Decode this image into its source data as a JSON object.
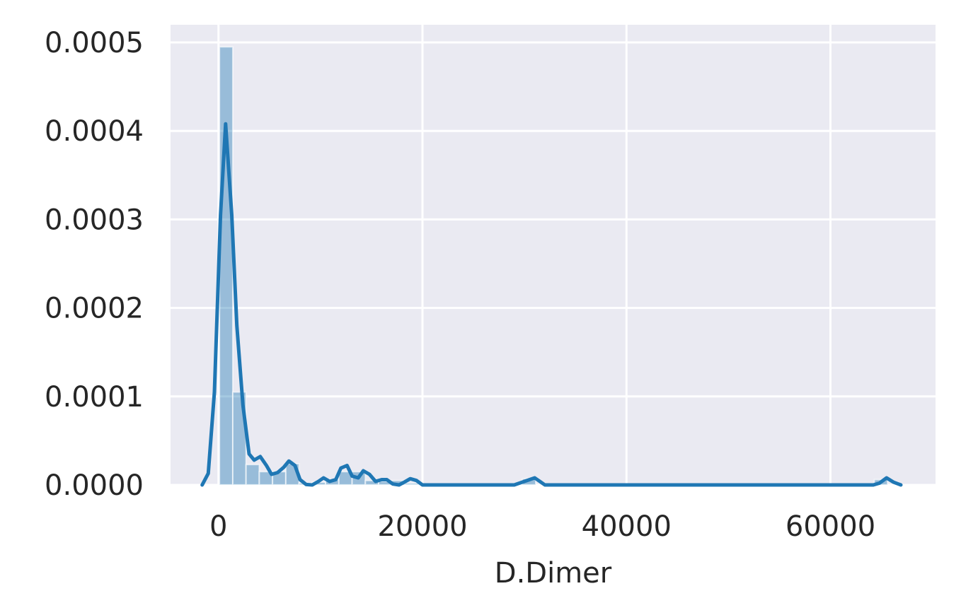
{
  "chart_data": {
    "type": "bar",
    "title": "",
    "xlabel": "D.Dimer",
    "ylabel": "",
    "xlim": [
      -4700,
      70300
    ],
    "ylim": [
      0,
      0.00052
    ],
    "x_ticks": [
      0,
      20000,
      40000,
      60000
    ],
    "x_tick_labels": [
      "0",
      "20000",
      "40000",
      "60000"
    ],
    "y_ticks": [
      0,
      0.0001,
      0.0002,
      0.0003,
      0.0004,
      0.0005
    ],
    "y_tick_labels": [
      "0.0000",
      "0.0001",
      "0.0002",
      "0.0003",
      "0.0004",
      "0.0005"
    ],
    "grid": true,
    "legend": "none",
    "colors": {
      "plot_background": "#eaeaf2",
      "grid": "#ffffff",
      "bar_fill": "#1f77b4",
      "kde_line": "#1f77b4",
      "text": "#262626"
    },
    "histogram": {
      "name": "",
      "bins": [
        {
          "x0": 100,
          "x1": 1400,
          "density": 0.000495
        },
        {
          "x0": 1400,
          "x1": 2700,
          "density": 0.000105
        },
        {
          "x0": 2700,
          "x1": 4000,
          "density": 2.3e-05
        },
        {
          "x0": 4000,
          "x1": 5300,
          "density": 1.5e-05
        },
        {
          "x0": 5300,
          "x1": 6600,
          "density": 1.5e-05
        },
        {
          "x0": 6600,
          "x1": 7900,
          "density": 2.4e-05
        },
        {
          "x0": 7900,
          "x1": 9200,
          "density": 2e-06
        },
        {
          "x0": 9200,
          "x1": 10500,
          "density": 3e-06
        },
        {
          "x0": 10500,
          "x1": 11800,
          "density": 6e-06
        },
        {
          "x0": 11800,
          "x1": 13100,
          "density": 1.5e-05
        },
        {
          "x0": 13100,
          "x1": 14400,
          "density": 1.5e-05
        },
        {
          "x0": 14400,
          "x1": 15700,
          "density": 5e-06
        },
        {
          "x0": 15700,
          "x1": 17000,
          "density": 4e-06
        },
        {
          "x0": 17000,
          "x1": 18300,
          "density": 5e-06
        },
        {
          "x0": 18300,
          "x1": 19600,
          "density": 2e-06
        },
        {
          "x0": 29800,
          "x1": 31100,
          "density": 7e-06
        },
        {
          "x0": 64300,
          "x1": 65600,
          "density": 6e-06
        }
      ]
    },
    "kde": {
      "name": "",
      "x": [
        -1600,
        -1000,
        -400,
        200,
        700,
        1300,
        1800,
        2400,
        3000,
        3500,
        4100,
        4700,
        5200,
        5800,
        6400,
        6900,
        7500,
        8000,
        8600,
        9200,
        9800,
        10300,
        10900,
        11500,
        12000,
        12600,
        13100,
        13700,
        14200,
        14800,
        15400,
        16000,
        16500,
        17100,
        17700,
        18200,
        18800,
        19400,
        20000,
        25000,
        29000,
        30000,
        31000,
        32000,
        40000,
        50000,
        60000,
        64200,
        64800,
        65500,
        66200,
        66900
      ],
      "y": [
        0.0,
        1.3e-05,
        0.000105,
        0.000305,
        0.000408,
        0.000305,
        0.00018,
        9e-05,
        3.5e-05,
        2.8e-05,
        3.2e-05,
        2.2e-05,
        1.2e-05,
        1.4e-05,
        2e-05,
        2.7e-05,
        2.2e-05,
        6e-06,
        5e-07,
        0.0,
        4e-06,
        8e-06,
        4e-06,
        6e-06,
        1.9e-05,
        2.2e-05,
        1e-05,
        8e-06,
        1.6e-05,
        1.2e-05,
        4e-06,
        6e-06,
        6e-06,
        1e-06,
        0.0,
        3e-06,
        7e-06,
        5e-06,
        0.0,
        0.0,
        0.0,
        4e-06,
        8e-06,
        0.0,
        0.0,
        0.0,
        0.0,
        0.0,
        2e-06,
        8e-06,
        3e-06,
        0.0
      ]
    }
  }
}
